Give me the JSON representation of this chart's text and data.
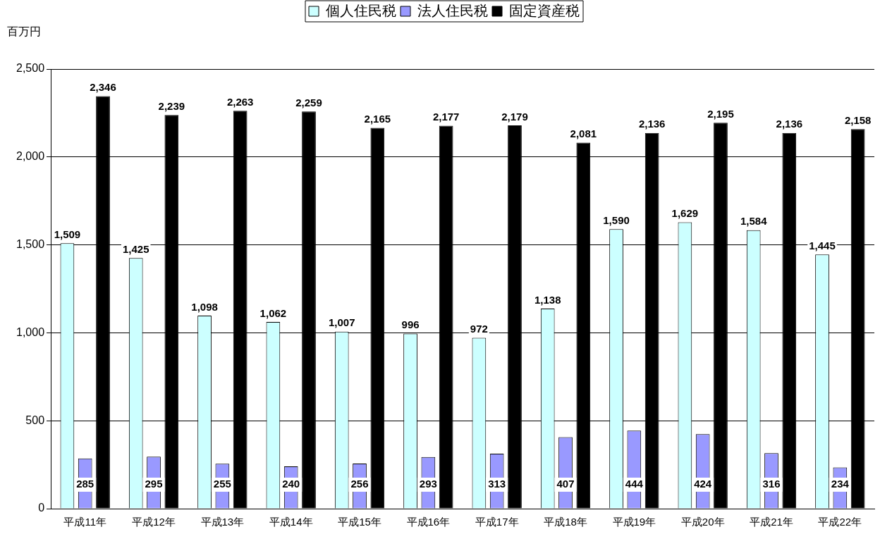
{
  "chart_data": {
    "type": "bar",
    "ylabel": "百万円",
    "categories": [
      "平成11年",
      "平成12年",
      "平成13年",
      "平成14年",
      "平成15年",
      "平成16年",
      "平成17年",
      "平成18年",
      "平成19年",
      "平成20年",
      "平成21年",
      "平成22年"
    ],
    "series": [
      {
        "name": "個人住民税",
        "color": "#ccffff",
        "values": [
          1509,
          1425,
          1098,
          1062,
          1007,
          996,
          972,
          1138,
          1590,
          1629,
          1584,
          1445
        ],
        "value_labels": [
          "1,509",
          "1,425",
          "1,098",
          "1,062",
          "1,007",
          "996",
          "972",
          "1,138",
          "1,590",
          "1,629",
          "1,584",
          "1,445"
        ]
      },
      {
        "name": "法人住民税",
        "color": "#9999ff",
        "values": [
          285,
          295,
          255,
          240,
          256,
          293,
          313,
          407,
          444,
          424,
          316,
          234
        ],
        "value_labels": [
          "285",
          "295",
          "255",
          "240",
          "256",
          "293",
          "313",
          "407",
          "444",
          "424",
          "316",
          "234"
        ]
      },
      {
        "name": "固定資産税",
        "color": "#000000",
        "values": [
          2346,
          2239,
          2263,
          2259,
          2165,
          2177,
          2179,
          2081,
          2136,
          2195,
          2136,
          2158
        ],
        "value_labels": [
          "2,346",
          "2,239",
          "2,263",
          "2,259",
          "2,165",
          "2,177",
          "2,179",
          "2,081",
          "2,136",
          "2,195",
          "2,136",
          "2,158"
        ]
      }
    ],
    "ylim": [
      0,
      2500
    ],
    "yticks": [
      0,
      {
        "value": 500,
        "label": "500"
      },
      {
        "value": 1000,
        "label": "1,000"
      },
      {
        "value": 1500,
        "label": "1,500"
      },
      {
        "value": 2000,
        "label": "2,000"
      },
      {
        "value": 2500,
        "label": "2,500"
      }
    ],
    "grid": "y",
    "legend": "top"
  }
}
